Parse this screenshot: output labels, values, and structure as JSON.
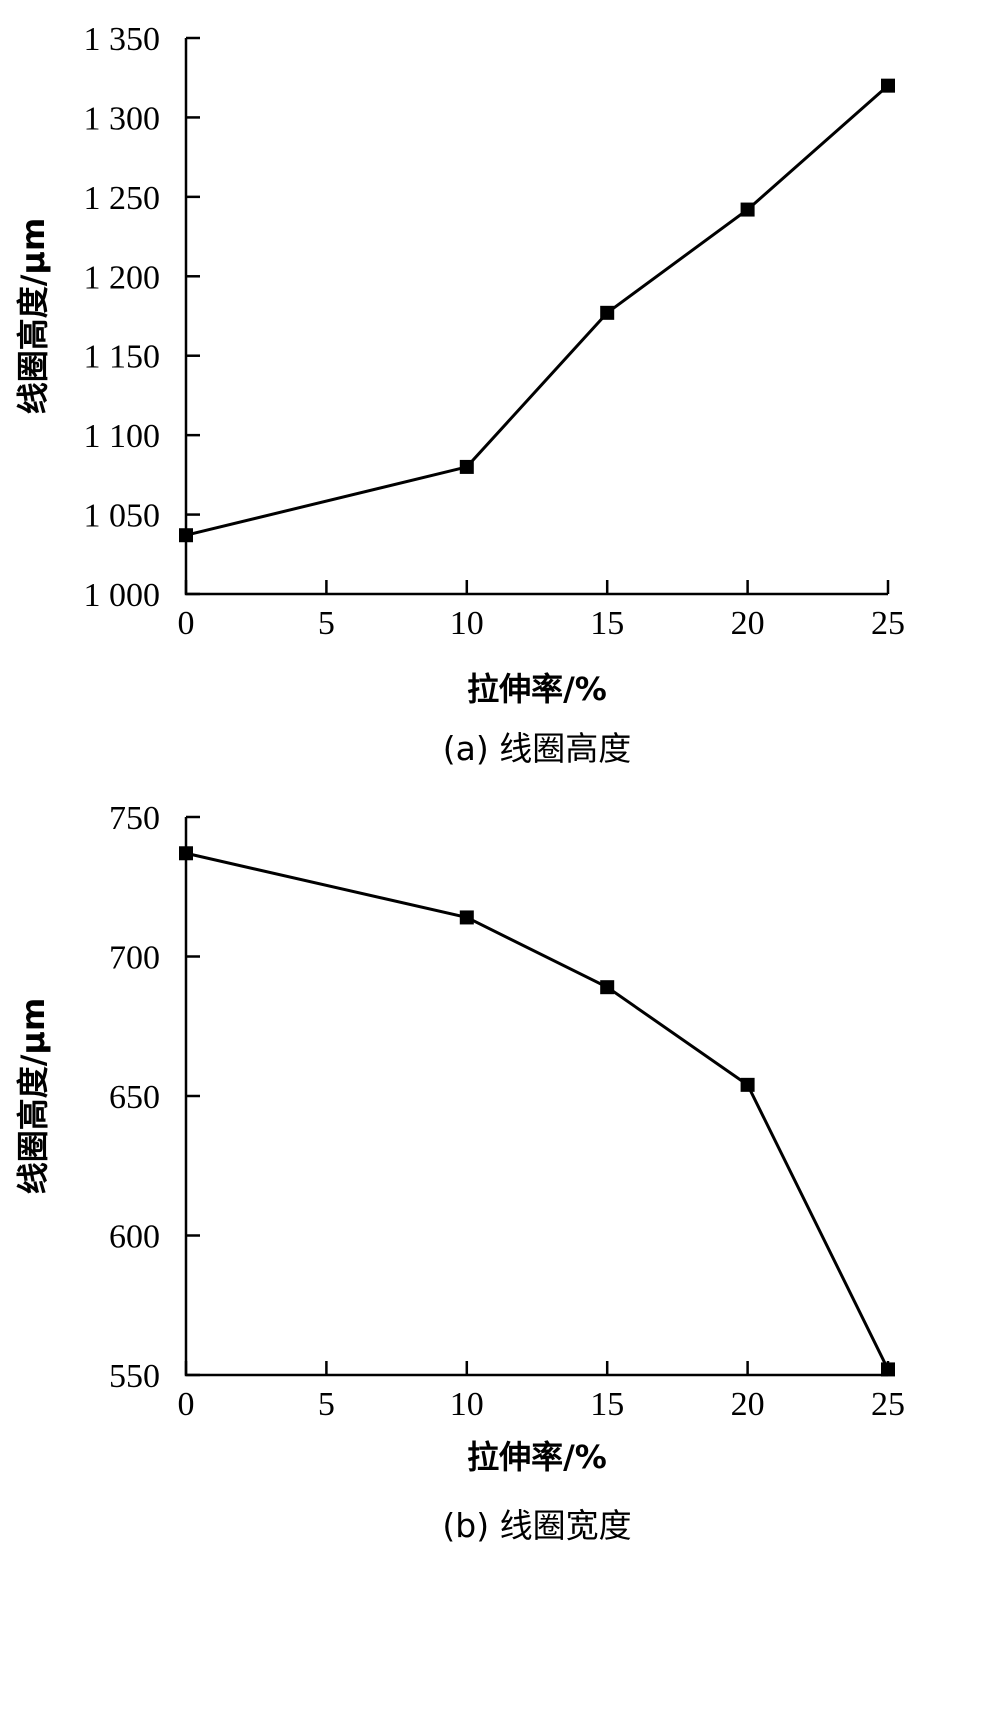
{
  "chart_data": [
    {
      "type": "line",
      "caption": "(a) 线圈高度",
      "xlabel": "拉伸率/%",
      "ylabel": "线圈高度/μm",
      "xlim": [
        0,
        25
      ],
      "ylim": [
        1000,
        1350
      ],
      "x_ticks": [
        0,
        5,
        10,
        15,
        20,
        25
      ],
      "x_tick_labels": [
        "0",
        "5",
        "10",
        "15",
        "20",
        "25"
      ],
      "y_ticks": [
        1000,
        1050,
        1100,
        1150,
        1200,
        1250,
        1300,
        1350
      ],
      "y_tick_labels": [
        "1 000",
        "1 050",
        "1 100",
        "1 150",
        "1 200",
        "1 250",
        "1 300",
        "1 350"
      ],
      "grid": false,
      "series": [
        {
          "x": [
            0,
            10,
            15,
            20,
            25
          ],
          "values": [
            1037,
            1080,
            1177,
            1242,
            1320
          ]
        }
      ]
    },
    {
      "type": "line",
      "caption": "(b) 线圈宽度",
      "xlabel": "拉伸率/%",
      "ylabel": "线圈高度/μm",
      "xlim": [
        0,
        25
      ],
      "ylim": [
        550,
        750
      ],
      "x_ticks": [
        0,
        5,
        10,
        15,
        20,
        25
      ],
      "x_tick_labels": [
        "0",
        "5",
        "10",
        "15",
        "20",
        "25"
      ],
      "y_ticks": [
        550,
        600,
        650,
        700,
        750
      ],
      "y_tick_labels": [
        "550",
        "600",
        "650",
        "700",
        "750"
      ],
      "grid": false,
      "series": [
        {
          "x": [
            0,
            10,
            15,
            20,
            25
          ],
          "values": [
            737,
            714,
            689,
            654,
            552
          ]
        }
      ]
    }
  ]
}
